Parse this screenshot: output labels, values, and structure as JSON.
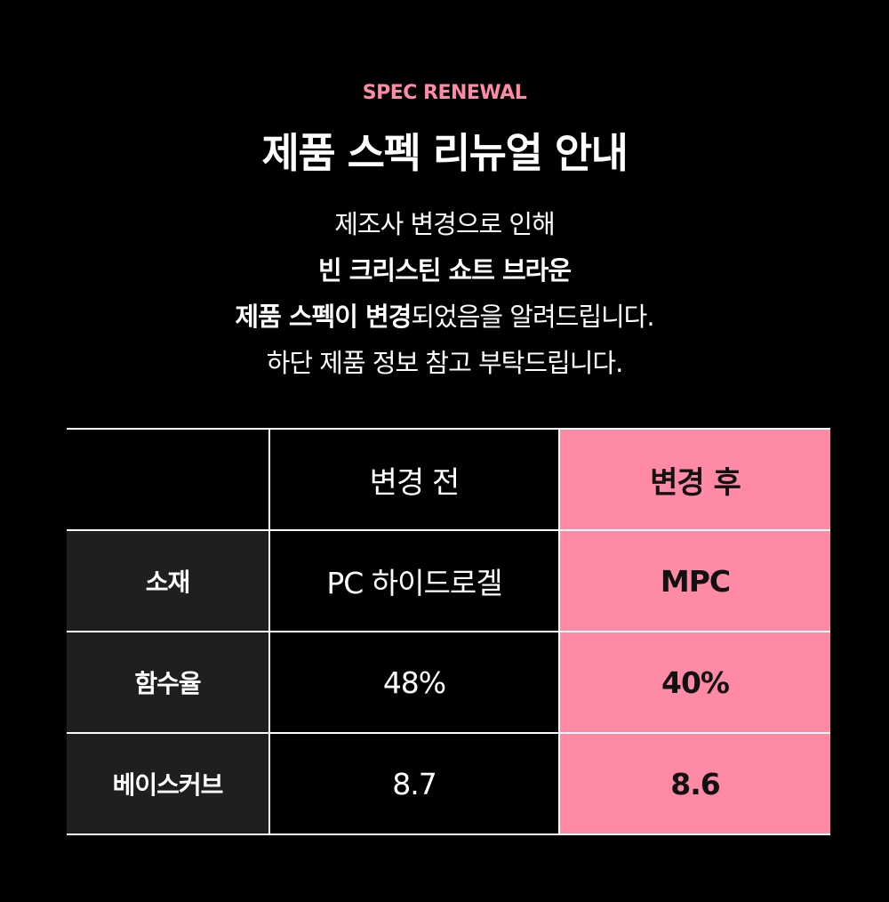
{
  "header": {
    "eyebrow": "SPEC RENEWAL",
    "title": "제품 스펙 리뉴얼 안내"
  },
  "notice": {
    "line1": "제조사 변경으로 인해",
    "line2": "빈 크리스틴 쇼트 브라운",
    "line3_bold": "제품 스펙이 변경",
    "line3_rest": "되었음을 알려드립니다.",
    "line4": "하단 제품 정보 참고 부탁드립니다."
  },
  "table": {
    "headers": [
      "",
      "변경 전",
      "변경 후"
    ],
    "rows": [
      {
        "label": "소재",
        "before": "PC 하이드로겔",
        "after": "MPC"
      },
      {
        "label": "함수율",
        "before": "48%",
        "after": "40%"
      },
      {
        "label": "베이스커브",
        "before": "8.7",
        "after": "8.6"
      }
    ]
  },
  "colors": {
    "background": "#000000",
    "accent": "#ff8aa5",
    "label_cell": "#1f1f1f"
  }
}
